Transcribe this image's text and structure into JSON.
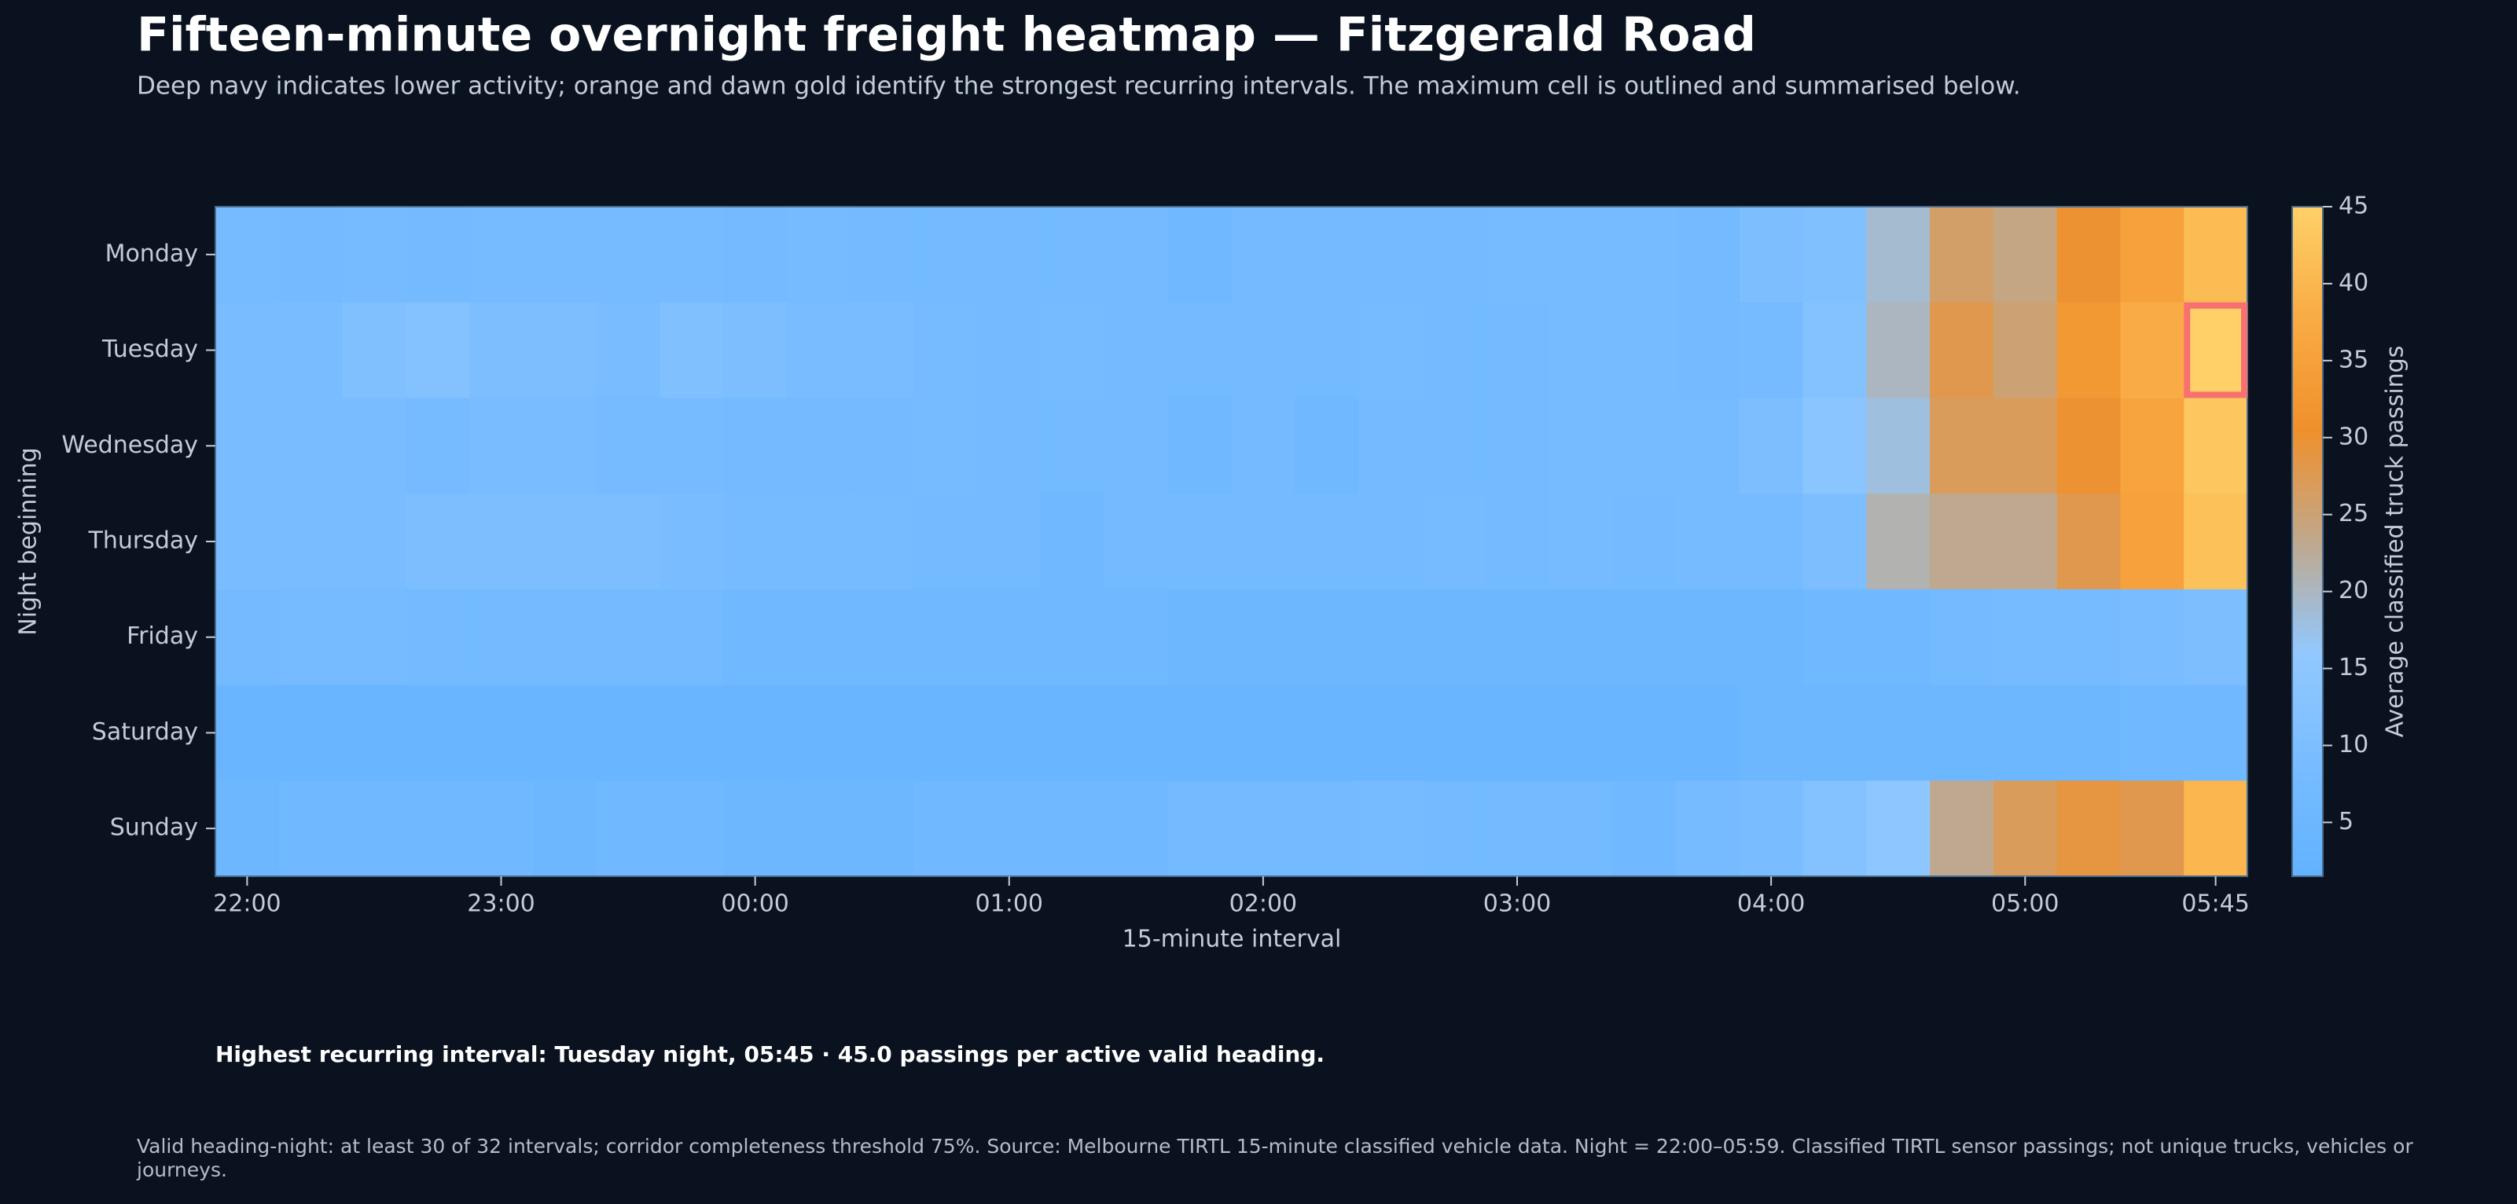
{
  "chart_data": {
    "type": "heatmap",
    "title": "Fifteen-minute overnight freight heatmap — Fitzgerald Road",
    "subtitle": "Deep navy indicates lower activity; orange and dawn gold identify the strongest recurring intervals. The maximum cell is outlined and summarised below.",
    "x_label": "15-minute interval",
    "y_label": "Night beginning",
    "colorbar_label": "Average classified truck passings",
    "x_categories": [
      "22:00",
      null,
      null,
      null,
      "23:00",
      null,
      null,
      null,
      "00:00",
      null,
      null,
      null,
      "01:00",
      null,
      null,
      null,
      "02:00",
      null,
      null,
      null,
      "03:00",
      null,
      null,
      null,
      "04:00",
      null,
      null,
      null,
      "05:00",
      null,
      null,
      "05:45"
    ],
    "y_categories": [
      "Monday",
      "Tuesday",
      "Wednesday",
      "Thursday",
      "Friday",
      "Saturday",
      "Sunday"
    ],
    "values": [
      [
        8,
        7,
        8,
        7,
        8,
        8,
        8,
        8,
        7,
        8,
        7,
        7,
        7,
        7,
        7,
        6,
        7,
        7,
        7,
        7,
        8,
        8,
        8,
        7,
        10,
        11,
        19,
        26,
        24,
        30,
        35,
        41
      ],
      [
        9,
        9,
        11,
        12,
        10,
        10,
        9,
        11,
        10,
        9,
        9,
        8,
        7,
        8,
        7,
        7,
        7,
        7,
        8,
        7,
        7,
        8,
        8,
        7,
        8,
        12,
        20,
        28,
        25,
        33,
        38,
        45
      ],
      [
        9,
        9,
        9,
        8,
        9,
        9,
        8,
        8,
        7,
        7,
        7,
        8,
        7,
        7,
        7,
        6,
        7,
        6,
        7,
        7,
        7,
        8,
        8,
        8,
        10,
        14,
        18,
        27,
        27,
        30,
        36,
        43
      ],
      [
        9,
        9,
        9,
        10,
        10,
        10,
        10,
        9,
        8,
        8,
        8,
        7,
        7,
        6,
        7,
        7,
        7,
        7,
        7,
        8,
        7,
        8,
        7,
        8,
        8,
        10,
        21,
        23,
        23,
        28,
        35,
        42
      ],
      [
        7,
        8,
        8,
        7,
        7,
        7,
        7,
        7,
        6,
        6,
        6,
        6,
        6,
        6,
        6,
        5,
        5,
        5,
        5,
        5,
        5,
        5,
        5,
        5,
        5,
        6,
        6,
        7,
        8,
        8,
        9,
        10
      ],
      [
        4,
        4,
        4,
        4,
        4,
        4,
        4,
        4,
        4,
        4,
        4,
        4,
        4,
        4,
        4,
        4,
        4,
        4,
        4,
        4,
        4,
        4,
        4,
        4,
        5,
        5,
        5,
        5,
        5,
        5,
        6,
        6
      ],
      [
        5,
        6,
        6,
        6,
        6,
        5,
        6,
        6,
        5,
        5,
        5,
        6,
        6,
        6,
        6,
        7,
        7,
        7,
        8,
        7,
        7,
        7,
        6,
        8,
        9,
        12,
        15,
        23,
        27,
        29,
        28,
        40
      ]
    ],
    "clim": [
      1.5,
      45
    ],
    "cticks": [
      5,
      10,
      15,
      20,
      25,
      30,
      35,
      40,
      45
    ],
    "colorscale": [
      "#62b2ff",
      "#78bcff",
      "#92c8ff",
      "#c0a88c",
      "#f0902c",
      "#f9ab44",
      "#ffd068"
    ],
    "highlight_color": "#f87070",
    "annotation": "Highest recurring interval: Tuesday night, 05:45 · 45.0 passings per active valid heading.",
    "footnote": "Valid heading-night: at least 30 of 32 intervals; corridor completeness threshold 75%. Source: Melbourne TIRTL 15-minute classified vehicle data. Night = 22:00–05:59. Classified TIRTL sensor passings; not unique trucks, vehicles or journeys."
  }
}
